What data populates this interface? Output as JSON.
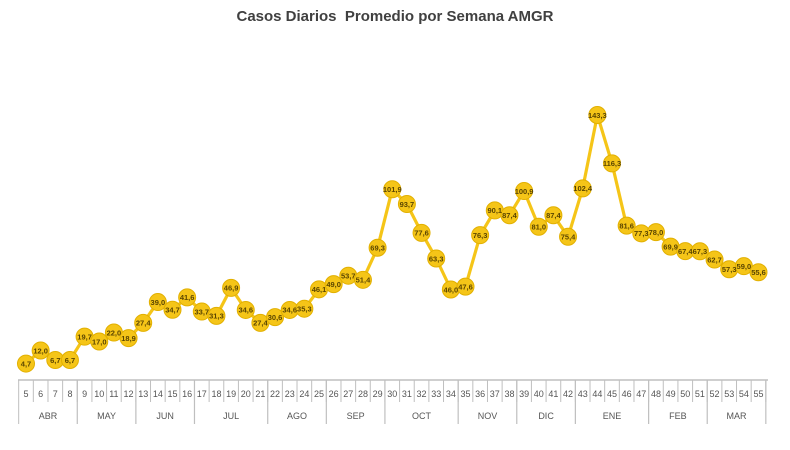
{
  "chart_data": {
    "type": "line",
    "title": "Casos Diarios  Promedio por Semana AMGR",
    "xlabel": "",
    "ylabel": "",
    "x": [
      5,
      6,
      7,
      8,
      9,
      10,
      11,
      12,
      13,
      14,
      15,
      16,
      17,
      18,
      19,
      20,
      21,
      22,
      23,
      24,
      25,
      26,
      27,
      28,
      29,
      30,
      31,
      32,
      33,
      34,
      35,
      36,
      37,
      38,
      39,
      40,
      41,
      42,
      43,
      44,
      45,
      46,
      47,
      48,
      49,
      50,
      51,
      52,
      53,
      54,
      55
    ],
    "values": [
      4.7,
      12.0,
      6.7,
      6.7,
      19.7,
      17.0,
      22.0,
      18.9,
      27.4,
      39.0,
      34.7,
      41.6,
      33.7,
      31.3,
      46.9,
      34.6,
      27.4,
      30.6,
      34.6,
      35.3,
      46.1,
      49.0,
      53.7,
      51.4,
      69.3,
      101.9,
      93.7,
      77.6,
      63.3,
      46.0,
      47.6,
      76.3,
      90.1,
      87.4,
      100.9,
      81.0,
      87.4,
      75.4,
      102.4,
      143.3,
      116.3,
      81.6,
      77.3,
      78.0,
      69.9,
      67.4,
      67.3,
      62.7,
      57.3,
      59.0,
      55.6
    ],
    "data_labels": [
      "4,7",
      "12,0",
      "6,7",
      "6,7",
      "19,7",
      "17,0",
      "22,0",
      "18,9",
      "27,4",
      "39,0",
      "34,7",
      "41,6",
      "33,7",
      "31,3",
      "46,9",
      "34,6",
      "27,4",
      "30,6",
      "34,6",
      "35,3",
      "46,1",
      "49,0",
      "53,7",
      "51,4",
      "69,3",
      "101,9",
      "93,7",
      "77,6",
      "63,3",
      "46,0",
      "47,6",
      "76,3",
      "90,1",
      "87,4",
      "100,9",
      "81,0",
      "87,4",
      "75,4",
      "102,4",
      "143,3",
      "116,3",
      "81,6",
      "77,3",
      "78,0",
      "69,9",
      "67,4",
      "67,3",
      "62,7",
      "57,3",
      "59,0",
      "55,6"
    ],
    "months": [
      {
        "label": "ABR",
        "weeks": [
          5,
          8
        ]
      },
      {
        "label": "MAY",
        "weeks": [
          9,
          12
        ]
      },
      {
        "label": "JUN",
        "weeks": [
          13,
          16
        ]
      },
      {
        "label": "JUL",
        "weeks": [
          17,
          21
        ]
      },
      {
        "label": "AGO",
        "weeks": [
          22,
          25
        ]
      },
      {
        "label": "SEP",
        "weeks": [
          26,
          29
        ]
      },
      {
        "label": "OCT",
        "weeks": [
          30,
          34
        ]
      },
      {
        "label": "NOV",
        "weeks": [
          35,
          38
        ]
      },
      {
        "label": "DIC",
        "weeks": [
          39,
          42
        ]
      },
      {
        "label": "ENE",
        "weeks": [
          43,
          47
        ]
      },
      {
        "label": "FEB",
        "weeks": [
          48,
          51
        ]
      },
      {
        "label": "MAR",
        "weeks": [
          52,
          55
        ]
      }
    ],
    "ylim": [
      0,
      150
    ],
    "grid": false,
    "legend": "none",
    "colors": {
      "line": "#F5C518",
      "marker": "#F5C518",
      "marker_stroke": "#E2B000",
      "axis": "#BFBFBF",
      "label": "#5a4500"
    }
  }
}
